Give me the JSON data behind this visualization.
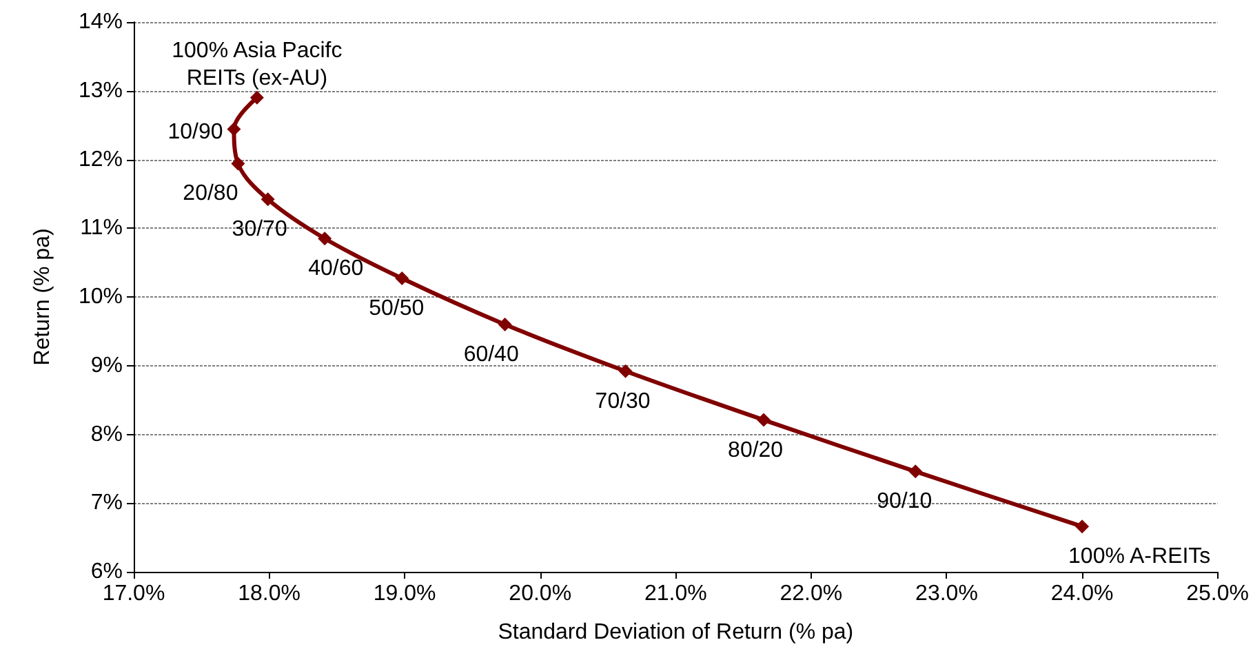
{
  "chart_data": {
    "type": "line",
    "xlabel": "Standard Deviation of Return (% pa)",
    "ylabel": "Return (% pa)",
    "x": [
      17.91,
      17.74,
      17.77,
      17.99,
      18.41,
      18.98,
      19.74,
      20.63,
      21.65,
      22.77,
      24.0
    ],
    "series": [
      {
        "color": "#800000",
        "values": [
          12.9,
          12.44,
          11.94,
          11.42,
          10.85,
          10.27,
          9.6,
          8.92,
          8.21,
          7.46,
          6.66
        ]
      }
    ],
    "xlim": [
      17,
      25
    ],
    "xticks": [
      {
        "value": 17,
        "label": "17.0%"
      },
      {
        "value": 18,
        "label": "18.0%"
      },
      {
        "value": 19,
        "label": "19.0%"
      },
      {
        "value": 20,
        "label": "20.0%"
      },
      {
        "value": 21,
        "label": "21.0%"
      },
      {
        "value": 22,
        "label": "22.0%"
      },
      {
        "value": 23,
        "label": "23.0%"
      },
      {
        "value": 24,
        "label": "24.0%"
      },
      {
        "value": 25,
        "label": "25.0%"
      }
    ],
    "ylim": [
      6,
      14
    ],
    "yticks": [
      {
        "value": 6,
        "label": "6%"
      },
      {
        "value": 7,
        "label": "7%"
      },
      {
        "value": 8,
        "label": "8%"
      },
      {
        "value": 9,
        "label": "9%"
      },
      {
        "value": 10,
        "label": "10%"
      },
      {
        "value": 11,
        "label": "11%"
      },
      {
        "value": 12,
        "label": "12%"
      },
      {
        "value": 13,
        "label": "13%"
      },
      {
        "value": 14,
        "label": "14%"
      }
    ],
    "annotations": [
      {
        "text": "100% Asia Pacifc\nREITs (ex-AU)",
        "x": 17.91,
        "y": 12.9
      },
      {
        "text": "10/90",
        "x": 17.74,
        "y": 12.44
      },
      {
        "text": "20/80",
        "x": 17.77,
        "y": 11.94
      },
      {
        "text": "30/70",
        "x": 17.99,
        "y": 11.42
      },
      {
        "text": "40/60",
        "x": 18.41,
        "y": 10.85
      },
      {
        "text": "50/50",
        "x": 18.98,
        "y": 10.27
      },
      {
        "text": "60/40",
        "x": 19.74,
        "y": 9.6
      },
      {
        "text": "70/30",
        "x": 20.63,
        "y": 8.92
      },
      {
        "text": "80/20",
        "x": 21.65,
        "y": 8.21
      },
      {
        "text": "90/10",
        "x": 22.77,
        "y": 7.46
      },
      {
        "text": "100% A-REITs",
        "x": 24.0,
        "y": 6.66
      }
    ],
    "grid": "y",
    "marker": "diamond",
    "line_style": "solid"
  }
}
